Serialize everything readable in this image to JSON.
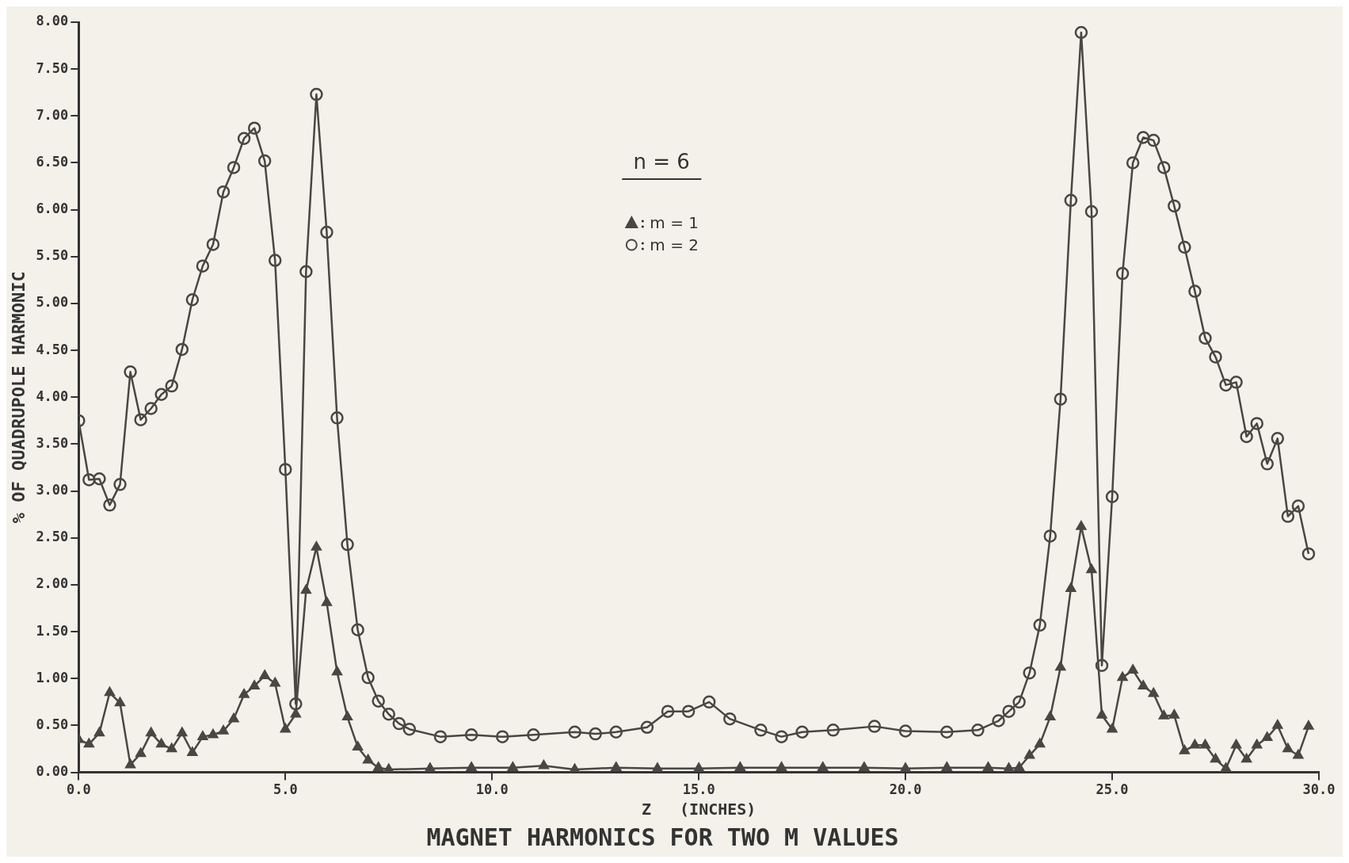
{
  "chart_data": {
    "type": "line",
    "title": "MAGNET HARMONICS FOR TWO M VALUES",
    "xlabel": "Z   (INCHES)",
    "ylabel": "% OF QUADRUPOLE HARMONIC",
    "legend_title": "n = 6",
    "legend": "top",
    "grid": false,
    "line_style": "solid",
    "xlim": [
      0,
      30
    ],
    "xticks": [
      {
        "value": 0,
        "label": "0.0"
      },
      {
        "value": 5,
        "label": "5.0"
      },
      {
        "value": 10,
        "label": "10.0"
      },
      {
        "value": 15,
        "label": "15.0"
      },
      {
        "value": 20,
        "label": "20.0"
      },
      {
        "value": 25,
        "label": "25.0"
      },
      {
        "value": 30,
        "label": "30.0"
      }
    ],
    "ylim": [
      0,
      8
    ],
    "yticks": [
      {
        "value": 0,
        "label": "0.00"
      },
      {
        "value": 0.5,
        "label": "0.50"
      },
      {
        "value": 1,
        "label": "1.00"
      },
      {
        "value": 1.5,
        "label": "1.50"
      },
      {
        "value": 2,
        "label": "2.00"
      },
      {
        "value": 2.5,
        "label": "2.50"
      },
      {
        "value": 3,
        "label": "3.00"
      },
      {
        "value": 3.5,
        "label": "3.50"
      },
      {
        "value": 4,
        "label": "4.00"
      },
      {
        "value": 4.5,
        "label": "4.50"
      },
      {
        "value": 5,
        "label": "5.00"
      },
      {
        "value": 5.5,
        "label": "5.50"
      },
      {
        "value": 6,
        "label": "6.00"
      },
      {
        "value": 6.5,
        "label": "6.50"
      },
      {
        "value": 7,
        "label": "7.00"
      },
      {
        "value": 7.5,
        "label": "7.50"
      },
      {
        "value": 8,
        "label": "8.00"
      }
    ],
    "series": [
      {
        "name": "m = 1",
        "color": "#4a4642",
        "marker": "triangle",
        "x": [
          0,
          0.25,
          0.5,
          0.75,
          1,
          1.25,
          1.5,
          1.75,
          2,
          2.25,
          2.5,
          2.75,
          3,
          3.25,
          3.5,
          3.75,
          4,
          4.25,
          4.5,
          4.75,
          5,
          5.25,
          5.5,
          5.75,
          6,
          6.25,
          6.5,
          6.75,
          7,
          7.25,
          7.5,
          8.5,
          9.5,
          10.5,
          11.25,
          12,
          13,
          14,
          15,
          16,
          17,
          18,
          19,
          20,
          21,
          22,
          22.5,
          22.75,
          23,
          23.25,
          23.5,
          23.75,
          24,
          24.25,
          24.5,
          24.75,
          25,
          25.25,
          25.5,
          25.75,
          26,
          26.25,
          26.5,
          26.75,
          27,
          27.25,
          27.5,
          27.75,
          28,
          28.25,
          28.5,
          28.75,
          29,
          29.25,
          29.5,
          29.75
        ],
        "values": [
          0.35,
          0.3,
          0.42,
          0.85,
          0.74,
          0.08,
          0.2,
          0.42,
          0.3,
          0.25,
          0.42,
          0.21,
          0.38,
          0.4,
          0.44,
          0.57,
          0.83,
          0.92,
          1.03,
          0.95,
          0.46,
          0.62,
          1.94,
          2.4,
          1.81,
          1.07,
          0.59,
          0.27,
          0.13,
          0.05,
          0.03,
          0.04,
          0.05,
          0.05,
          0.07,
          0.03,
          0.05,
          0.04,
          0.04,
          0.05,
          0.05,
          0.05,
          0.05,
          0.04,
          0.05,
          0.05,
          0.04,
          0.05,
          0.18,
          0.3,
          0.59,
          1.12,
          1.96,
          2.62,
          2.16,
          0.61,
          0.46,
          1.01,
          1.09,
          0.92,
          0.84,
          0.6,
          0.61,
          0.23,
          0.29,
          0.29,
          0.14,
          0.04,
          0.29,
          0.14,
          0.29,
          0.37,
          0.5,
          0.25,
          0.18,
          0.49
        ]
      },
      {
        "name": "m = 2",
        "color": "#4a4642",
        "marker": "circle",
        "x": [
          0,
          0.25,
          0.5,
          0.75,
          1,
          1.25,
          1.5,
          1.75,
          2,
          2.25,
          2.5,
          2.75,
          3,
          3.25,
          3.5,
          3.75,
          4,
          4.25,
          4.5,
          4.75,
          5,
          5.25,
          5.5,
          5.75,
          6,
          6.25,
          6.5,
          6.75,
          7,
          7.25,
          7.5,
          7.75,
          8,
          8.75,
          9.5,
          10.25,
          11,
          12,
          12.5,
          13,
          13.75,
          14.25,
          14.75,
          15.25,
          15.75,
          16.5,
          17,
          17.5,
          18.25,
          19.25,
          20,
          21,
          21.75,
          22.25,
          22.5,
          22.75,
          23,
          23.25,
          23.5,
          23.75,
          24,
          24.25,
          24.5,
          24.75,
          25,
          25.25,
          25.5,
          25.75,
          26,
          26.25,
          26.5,
          26.75,
          27,
          27.25,
          27.5,
          27.75,
          28,
          28.25,
          28.5,
          28.75,
          29,
          29.25,
          29.5,
          29.75
        ],
        "values": [
          3.75,
          3.12,
          3.13,
          2.85,
          3.07,
          4.27,
          3.76,
          3.88,
          4.03,
          4.12,
          4.51,
          5.04,
          5.4,
          5.63,
          6.19,
          6.45,
          6.76,
          6.87,
          6.52,
          5.46,
          3.23,
          0.73,
          5.34,
          7.23,
          5.76,
          3.78,
          2.43,
          1.52,
          1.01,
          0.76,
          0.62,
          0.52,
          0.46,
          0.38,
          0.4,
          0.38,
          0.4,
          0.43,
          0.41,
          0.43,
          0.48,
          0.65,
          0.65,
          0.75,
          0.57,
          0.45,
          0.38,
          0.43,
          0.45,
          0.49,
          0.44,
          0.43,
          0.45,
          0.55,
          0.65,
          0.75,
          1.06,
          1.57,
          2.52,
          3.98,
          6.1,
          7.89,
          5.98,
          1.14,
          2.94,
          5.32,
          6.5,
          6.77,
          6.74,
          6.45,
          6.04,
          5.6,
          5.13,
          4.63,
          4.43,
          4.13,
          4.16,
          3.58,
          3.72,
          3.29,
          3.56,
          2.73,
          2.84,
          2.33
        ]
      }
    ]
  }
}
